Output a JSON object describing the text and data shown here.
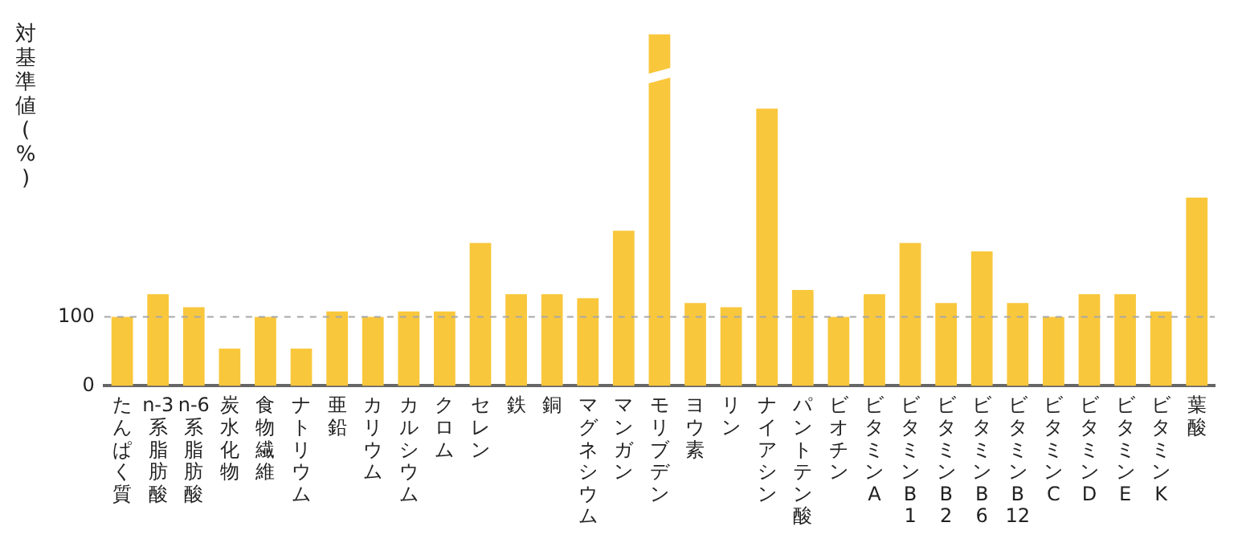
{
  "chart_data": {
    "type": "bar",
    "ylabel": "対基準値(%)",
    "categories": [
      "たんぱく質",
      "n-3系脂肪酸",
      "n-6系脂肪酸",
      "炭水化物",
      "食物繊維",
      "ナトリウム",
      "亜鉛",
      "カリウム",
      "カルシウム",
      "クロム",
      "セレン",
      "鉄",
      "銅",
      "マグネシウム",
      "マンガン",
      "モリブデン",
      "ヨウ素",
      "リン",
      "ナイアシン",
      "パントテン酸",
      "ビオチン",
      "ビタミンA",
      "ビタミンB1",
      "ビタミンB2",
      "ビタミンB6",
      "ビタミンB12",
      "ビタミンC",
      "ビタミンD",
      "ビタミンE",
      "ビタミンK",
      "葉酸"
    ],
    "values": [
      100,
      133,
      114,
      54,
      100,
      54,
      108,
      100,
      108,
      108,
      207,
      133,
      133,
      127,
      225,
      510,
      120,
      114,
      402,
      139,
      100,
      133,
      207,
      120,
      195,
      120,
      100,
      133,
      133,
      108,
      273
    ],
    "color": "#f9c73c",
    "ylim": [
      0,
      510
    ],
    "yticks": [
      0,
      100
    ],
    "grid": false,
    "legend": false,
    "ref_lines": [
      {
        "axis": "y",
        "value": 100,
        "color": "#a8a8a8",
        "line_style": "dashed"
      }
    ]
  }
}
